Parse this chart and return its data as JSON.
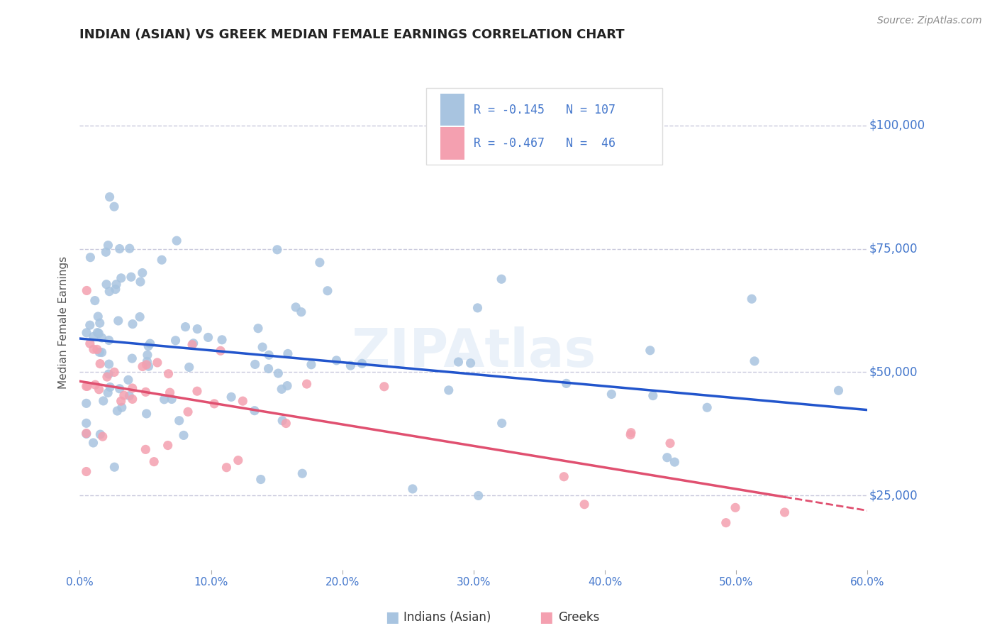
{
  "title": "INDIAN (ASIAN) VS GREEK MEDIAN FEMALE EARNINGS CORRELATION CHART",
  "source": "Source: ZipAtlas.com",
  "ylabel": "Median Female Earnings",
  "xlim": [
    0.0,
    0.6
  ],
  "ylim": [
    10000,
    110000
  ],
  "yticks": [
    25000,
    50000,
    75000,
    100000
  ],
  "ytick_labels": [
    "$25,000",
    "$50,000",
    "$75,000",
    "$100,000"
  ],
  "xticks": [
    0.0,
    0.1,
    0.2,
    0.3,
    0.4,
    0.5,
    0.6
  ],
  "xtick_labels": [
    "0.0%",
    "10.0%",
    "20.0%",
    "30.0%",
    "40.0%",
    "50.0%",
    "60.0%"
  ],
  "series1_label": "Indians (Asian)",
  "series2_label": "Greeks",
  "series1_color": "#a8c4e0",
  "series2_color": "#f4a0b0",
  "series1_R": "-0.145",
  "series1_N": "107",
  "series2_R": "-0.467",
  "series2_N": "46",
  "trend1_color": "#2255cc",
  "trend2_color": "#e05070",
  "watermark": "ZIPAtlas",
  "background_color": "#ffffff",
  "grid_color": "#c8c8dc",
  "tick_label_color": "#4477cc",
  "axis_label_color": "#555555",
  "title_color": "#222222",
  "source_color": "#888888"
}
